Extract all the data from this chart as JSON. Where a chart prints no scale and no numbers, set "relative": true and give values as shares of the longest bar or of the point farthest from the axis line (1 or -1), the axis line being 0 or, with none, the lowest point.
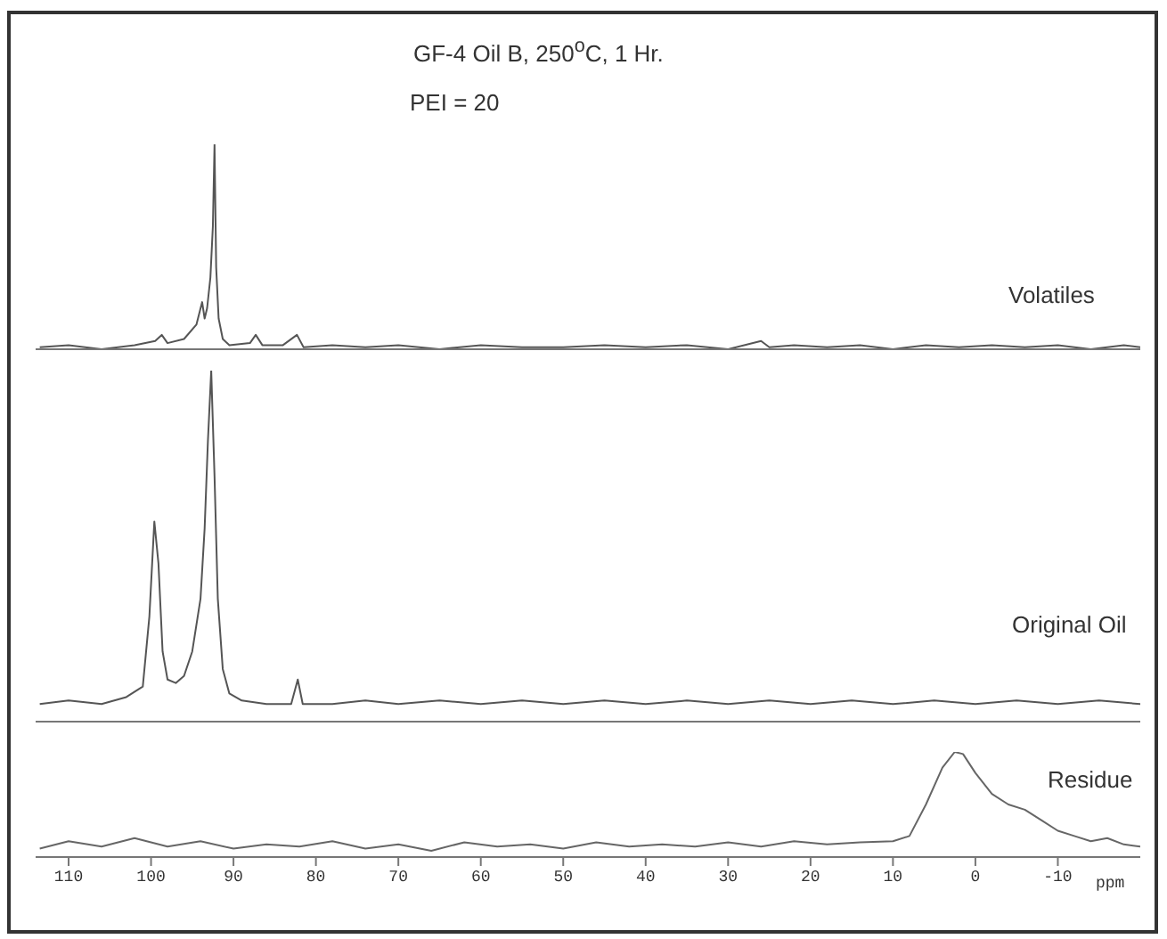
{
  "chart_data": [
    {
      "type": "line",
      "title": "GF-4 Oil B, 250$^{o}$C, 1 Hr.",
      "subtitle": "PEI = 20",
      "relative": true,
      "xlim": [
        114,
        -20
      ],
      "xticks": [
        110,
        100,
        90,
        80,
        70,
        60,
        50,
        40,
        30,
        20,
        10,
        0,
        -10
      ],
      "tick_labels": false,
      "legend": false,
      "marker": "none",
      "series": [
        {
          "name": "Volatiles",
          "color": "#555555",
          "x": [
            113.5,
            110,
            106,
            102,
            99.5,
            98.7,
            98,
            96,
            94.5,
            93.8,
            93.5,
            93.2,
            92.8,
            92.5,
            92.3,
            92.1,
            91.8,
            91.3,
            90.5,
            88,
            87.3,
            86.5,
            84,
            82.3,
            81.5,
            78,
            74,
            70,
            65,
            60,
            55,
            50,
            45,
            40,
            35,
            30,
            26,
            25,
            22,
            18,
            14,
            10,
            6,
            2,
            -2,
            -6,
            -10,
            -14,
            -18,
            -20
          ],
          "values": [
            0.01,
            0.02,
            0,
            0.02,
            0.04,
            0.07,
            0.03,
            0.05,
            0.12,
            0.23,
            0.15,
            0.2,
            0.35,
            0.6,
            1,
            0.4,
            0.15,
            0.05,
            0.02,
            0.03,
            0.07,
            0.02,
            0.02,
            0.07,
            0.01,
            0.02,
            0.01,
            0.02,
            0,
            0.02,
            0.01,
            0.01,
            0.02,
            0.01,
            0.02,
            0,
            0.04,
            0.01,
            0.02,
            0.01,
            0.02,
            0,
            0.02,
            0.01,
            0.02,
            0.01,
            0.02,
            0,
            0.02,
            0.01
          ]
        }
      ]
    },
    {
      "type": "line",
      "relative": true,
      "xlim": [
        114,
        -20
      ],
      "xticks": [
        110,
        100,
        90,
        80,
        70,
        60,
        50,
        40,
        30,
        20,
        10,
        0,
        -10
      ],
      "tick_labels": false,
      "legend": false,
      "marker": "none",
      "series": [
        {
          "name": "Original Oil",
          "color": "#555555",
          "x": [
            113.5,
            110,
            106,
            103,
            101,
            100.2,
            99.6,
            99.1,
            98.6,
            98,
            97,
            96,
            95,
            94,
            93.5,
            93.1,
            92.7,
            92.3,
            91.9,
            91.3,
            90.5,
            89,
            86,
            83,
            82.2,
            81.6,
            78,
            74,
            70,
            65,
            60,
            55,
            50,
            45,
            40,
            35,
            30,
            25,
            20,
            15,
            10,
            5,
            0,
            -5,
            -10,
            -15,
            -20
          ],
          "values": [
            0.05,
            0.06,
            0.05,
            0.07,
            0.1,
            0.3,
            0.57,
            0.45,
            0.2,
            0.12,
            0.11,
            0.13,
            0.2,
            0.35,
            0.55,
            0.8,
            1,
            0.7,
            0.35,
            0.15,
            0.08,
            0.06,
            0.05,
            0.05,
            0.12,
            0.05,
            0.05,
            0.06,
            0.05,
            0.06,
            0.05,
            0.06,
            0.05,
            0.06,
            0.05,
            0.06,
            0.05,
            0.06,
            0.05,
            0.06,
            0.05,
            0.06,
            0.05,
            0.06,
            0.05,
            0.06,
            0.05
          ]
        }
      ]
    },
    {
      "type": "line",
      "xlabel": "ppm",
      "relative": true,
      "xlim": [
        114,
        -20
      ],
      "xticks": [
        110,
        100,
        90,
        80,
        70,
        60,
        50,
        40,
        30,
        20,
        10,
        0,
        -10
      ],
      "tick_labels": "x",
      "legend": false,
      "marker": "none",
      "series": [
        {
          "name": "Residue",
          "color": "#666666",
          "x": [
            113.5,
            110,
            106,
            102,
            98,
            94,
            90,
            86,
            82,
            78,
            74,
            70,
            66,
            62,
            58,
            54,
            50,
            46,
            42,
            38,
            34,
            30,
            26,
            22,
            18,
            14,
            10,
            8,
            6,
            4,
            2.5,
            1.5,
            0,
            -2,
            -4,
            -6,
            -8,
            -10,
            -12,
            -14,
            -16,
            -18,
            -20
          ],
          "values": [
            0.08,
            0.15,
            0.1,
            0.18,
            0.1,
            0.15,
            0.08,
            0.12,
            0.1,
            0.15,
            0.08,
            0.12,
            0.06,
            0.14,
            0.1,
            0.12,
            0.08,
            0.14,
            0.1,
            0.12,
            0.1,
            0.14,
            0.1,
            0.15,
            0.12,
            0.14,
            0.15,
            0.2,
            0.5,
            0.85,
            1,
            0.98,
            0.8,
            0.6,
            0.5,
            0.45,
            0.35,
            0.25,
            0.2,
            0.15,
            0.18,
            0.12,
            0.1
          ]
        }
      ]
    }
  ]
}
